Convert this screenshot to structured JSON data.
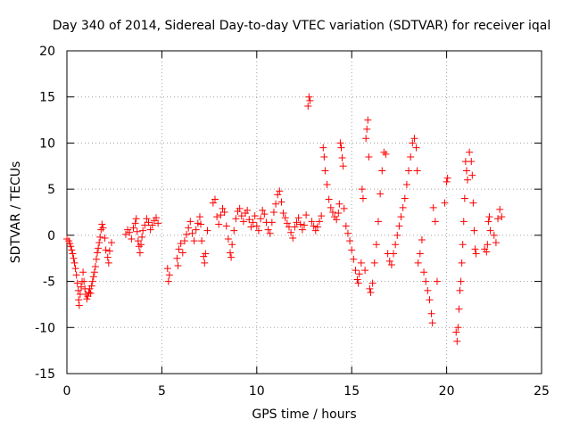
{
  "chart_data": {
    "type": "scatter",
    "title": "Day 340 of 2014, Sidereal Day-to-day VTEC variation (SDTVAR) for receiver iqal",
    "xlabel": "GPS time / hours",
    "ylabel": "SDTVAR / TECUs",
    "xlim": [
      0,
      25
    ],
    "ylim": [
      -15,
      20
    ],
    "xticks": [
      0,
      5,
      10,
      15,
      20,
      25
    ],
    "yticks": [
      -15,
      -10,
      -5,
      0,
      5,
      10,
      15,
      20
    ],
    "grid": true,
    "marker": "+",
    "color": "#ff0000",
    "series": [
      {
        "name": "SDTVAR",
        "points": [
          [
            0.0,
            -0.4
          ],
          [
            0.1,
            -0.6
          ],
          [
            0.15,
            -0.9
          ],
          [
            0.2,
            -1.2
          ],
          [
            0.25,
            -1.6
          ],
          [
            0.3,
            -2.0
          ],
          [
            0.35,
            -2.5
          ],
          [
            0.4,
            -3.0
          ],
          [
            0.45,
            -3.6
          ],
          [
            0.5,
            -4.3
          ],
          [
            0.55,
            -5.2
          ],
          [
            0.6,
            -6.0
          ],
          [
            0.62,
            -7.0
          ],
          [
            0.65,
            -7.6
          ],
          [
            0.7,
            -6.4
          ],
          [
            0.75,
            -5.6
          ],
          [
            0.8,
            -5.0
          ],
          [
            0.85,
            -4.0
          ],
          [
            0.9,
            -5.0
          ],
          [
            0.95,
            -5.8
          ],
          [
            1.0,
            -6.4
          ],
          [
            1.05,
            -6.9
          ],
          [
            1.1,
            -6.6
          ],
          [
            1.15,
            -6.2
          ],
          [
            1.2,
            -5.8
          ],
          [
            1.25,
            -6.3
          ],
          [
            1.3,
            -5.5
          ],
          [
            1.35,
            -5.0
          ],
          [
            1.4,
            -4.5
          ],
          [
            1.45,
            -4.0
          ],
          [
            1.5,
            -3.4
          ],
          [
            1.55,
            -2.6
          ],
          [
            1.6,
            -1.9
          ],
          [
            1.65,
            -1.4
          ],
          [
            1.7,
            -0.8
          ],
          [
            1.75,
            -0.2
          ],
          [
            1.8,
            0.6
          ],
          [
            1.85,
            1.2
          ],
          [
            1.9,
            0.8
          ],
          [
            2.0,
            -0.3
          ],
          [
            2.05,
            -1.6
          ],
          [
            2.15,
            -2.4
          ],
          [
            2.2,
            -3.0
          ],
          [
            2.25,
            -1.7
          ],
          [
            2.35,
            -0.8
          ],
          [
            3.1,
            0.1
          ],
          [
            3.2,
            0.6
          ],
          [
            3.3,
            0.3
          ],
          [
            3.4,
            -0.4
          ],
          [
            3.5,
            0.8
          ],
          [
            3.6,
            1.3
          ],
          [
            3.65,
            1.8
          ],
          [
            3.7,
            0.4
          ],
          [
            3.75,
            -0.6
          ],
          [
            3.8,
            -1.2
          ],
          [
            3.85,
            -1.9
          ],
          [
            3.9,
            -1.0
          ],
          [
            3.95,
            -0.2
          ],
          [
            4.0,
            0.5
          ],
          [
            4.1,
            1.1
          ],
          [
            4.2,
            1.8
          ],
          [
            4.3,
            1.4
          ],
          [
            4.4,
            0.6
          ],
          [
            4.5,
            1.1
          ],
          [
            4.6,
            1.6
          ],
          [
            4.7,
            1.9
          ],
          [
            4.8,
            1.3
          ],
          [
            5.3,
            -3.6
          ],
          [
            5.35,
            -5.0
          ],
          [
            5.4,
            -4.3
          ],
          [
            5.8,
            -2.5
          ],
          [
            5.85,
            -3.3
          ],
          [
            5.9,
            -1.5
          ],
          [
            6.0,
            -0.9
          ],
          [
            6.1,
            -1.9
          ],
          [
            6.2,
            -0.6
          ],
          [
            6.3,
            0.1
          ],
          [
            6.4,
            0.8
          ],
          [
            6.5,
            1.5
          ],
          [
            6.6,
            0.2
          ],
          [
            6.7,
            -0.6
          ],
          [
            6.8,
            0.6
          ],
          [
            6.9,
            1.3
          ],
          [
            7.0,
            2.0
          ],
          [
            7.05,
            1.2
          ],
          [
            7.1,
            -0.6
          ],
          [
            7.2,
            -2.3
          ],
          [
            7.25,
            -3.0
          ],
          [
            7.3,
            -2.0
          ],
          [
            7.4,
            0.5
          ],
          [
            7.7,
            3.5
          ],
          [
            7.8,
            3.9
          ],
          [
            7.9,
            2.0
          ],
          [
            8.0,
            1.2
          ],
          [
            8.1,
            2.2
          ],
          [
            8.2,
            2.9
          ],
          [
            8.3,
            2.5
          ],
          [
            8.4,
            1.0
          ],
          [
            8.5,
            -0.4
          ],
          [
            8.6,
            -1.9
          ],
          [
            8.65,
            -2.4
          ],
          [
            8.7,
            -1.0
          ],
          [
            8.8,
            0.5
          ],
          [
            8.9,
            1.8
          ],
          [
            9.0,
            2.6
          ],
          [
            9.1,
            2.9
          ],
          [
            9.2,
            2.1
          ],
          [
            9.3,
            1.5
          ],
          [
            9.4,
            2.4
          ],
          [
            9.5,
            2.7
          ],
          [
            9.6,
            1.7
          ],
          [
            9.7,
            0.9
          ],
          [
            9.8,
            1.4
          ],
          [
            9.9,
            2.1
          ],
          [
            10.0,
            1.0
          ],
          [
            10.1,
            0.5
          ],
          [
            10.2,
            1.8
          ],
          [
            10.3,
            2.7
          ],
          [
            10.4,
            2.3
          ],
          [
            10.5,
            1.4
          ],
          [
            10.6,
            0.6
          ],
          [
            10.7,
            0.2
          ],
          [
            10.8,
            1.4
          ],
          [
            10.9,
            2.5
          ],
          [
            11.0,
            3.4
          ],
          [
            11.1,
            4.4
          ],
          [
            11.2,
            4.8
          ],
          [
            11.3,
            3.6
          ],
          [
            11.4,
            2.4
          ],
          [
            11.5,
            1.9
          ],
          [
            11.6,
            1.3
          ],
          [
            11.7,
            0.9
          ],
          [
            11.8,
            0.3
          ],
          [
            11.9,
            -0.3
          ],
          [
            12.0,
            0.9
          ],
          [
            12.1,
            1.4
          ],
          [
            12.2,
            1.9
          ],
          [
            12.3,
            1.2
          ],
          [
            12.4,
            0.6
          ],
          [
            12.5,
            1.1
          ],
          [
            12.6,
            2.2
          ],
          [
            12.7,
            14.0
          ],
          [
            12.75,
            15.0
          ],
          [
            12.8,
            14.6
          ],
          [
            12.9,
            1.5
          ],
          [
            13.0,
            1.0
          ],
          [
            13.1,
            0.5
          ],
          [
            13.2,
            0.9
          ],
          [
            13.3,
            1.5
          ],
          [
            13.4,
            2.1
          ],
          [
            13.5,
            9.5
          ],
          [
            13.55,
            8.5
          ],
          [
            13.6,
            7.0
          ],
          [
            13.7,
            5.5
          ],
          [
            13.8,
            3.9
          ],
          [
            13.9,
            3.0
          ],
          [
            14.0,
            2.5
          ],
          [
            14.1,
            2.0
          ],
          [
            14.2,
            1.7
          ],
          [
            14.3,
            2.4
          ],
          [
            14.35,
            3.4
          ],
          [
            14.4,
            10.0
          ],
          [
            14.45,
            9.5
          ],
          [
            14.5,
            8.4
          ],
          [
            14.55,
            7.5
          ],
          [
            14.6,
            2.9
          ],
          [
            14.7,
            1.0
          ],
          [
            14.8,
            0.2
          ],
          [
            14.9,
            -0.6
          ],
          [
            15.0,
            -1.6
          ],
          [
            15.1,
            -2.6
          ],
          [
            15.2,
            -3.8
          ],
          [
            15.3,
            -4.8
          ],
          [
            15.35,
            -5.2
          ],
          [
            15.4,
            -4.2
          ],
          [
            15.5,
            -3.0
          ],
          [
            15.55,
            5.0
          ],
          [
            15.6,
            4.0
          ],
          [
            15.7,
            -3.8
          ],
          [
            15.75,
            10.5
          ],
          [
            15.8,
            11.5
          ],
          [
            15.85,
            12.5
          ],
          [
            15.9,
            8.5
          ],
          [
            15.95,
            -5.8
          ],
          [
            16.0,
            -6.2
          ],
          [
            16.1,
            -5.2
          ],
          [
            16.2,
            -3.0
          ],
          [
            16.3,
            -1.0
          ],
          [
            16.4,
            1.5
          ],
          [
            16.5,
            4.5
          ],
          [
            16.6,
            7.0
          ],
          [
            16.7,
            9.0
          ],
          [
            16.8,
            8.8
          ],
          [
            16.9,
            -2.0
          ],
          [
            17.0,
            -2.8
          ],
          [
            17.1,
            -3.2
          ],
          [
            17.2,
            -2.0
          ],
          [
            17.3,
            -1.0
          ],
          [
            17.4,
            0.0
          ],
          [
            17.5,
            1.0
          ],
          [
            17.6,
            2.0
          ],
          [
            17.7,
            3.0
          ],
          [
            17.8,
            4.0
          ],
          [
            17.9,
            5.5
          ],
          [
            18.0,
            7.0
          ],
          [
            18.1,
            8.5
          ],
          [
            18.2,
            10.0
          ],
          [
            18.3,
            10.5
          ],
          [
            18.4,
            9.5
          ],
          [
            18.45,
            7.0
          ],
          [
            18.5,
            -3.0
          ],
          [
            18.6,
            -2.0
          ],
          [
            18.7,
            -0.5
          ],
          [
            18.8,
            -4.0
          ],
          [
            18.9,
            -5.0
          ],
          [
            19.0,
            -6.0
          ],
          [
            19.1,
            -7.0
          ],
          [
            19.2,
            -8.5
          ],
          [
            19.25,
            -9.5
          ],
          [
            19.3,
            3.0
          ],
          [
            19.4,
            1.5
          ],
          [
            19.5,
            -5.0
          ],
          [
            19.9,
            3.5
          ],
          [
            20.0,
            5.8
          ],
          [
            20.05,
            6.2
          ],
          [
            20.5,
            -10.5
          ],
          [
            20.55,
            -11.5
          ],
          [
            20.6,
            -10.0
          ],
          [
            20.65,
            -8.0
          ],
          [
            20.7,
            -6.0
          ],
          [
            20.75,
            -5.0
          ],
          [
            20.8,
            -3.0
          ],
          [
            20.85,
            -1.0
          ],
          [
            20.9,
            1.5
          ],
          [
            20.95,
            4.0
          ],
          [
            21.0,
            8.0
          ],
          [
            21.05,
            7.0
          ],
          [
            21.1,
            6.0
          ],
          [
            21.2,
            9.0
          ],
          [
            21.3,
            8.0
          ],
          [
            21.35,
            6.5
          ],
          [
            21.4,
            3.5
          ],
          [
            21.45,
            0.5
          ],
          [
            21.5,
            -1.5
          ],
          [
            21.55,
            -2.0
          ],
          [
            22.0,
            -1.5
          ],
          [
            22.1,
            -1.8
          ],
          [
            22.15,
            -1.0
          ],
          [
            22.2,
            1.5
          ],
          [
            22.25,
            2.0
          ],
          [
            22.3,
            0.5
          ],
          [
            22.5,
            0.0
          ],
          [
            22.6,
            -0.8
          ],
          [
            22.7,
            1.8
          ],
          [
            22.8,
            2.8
          ],
          [
            22.9,
            2.0
          ]
        ]
      }
    ]
  }
}
